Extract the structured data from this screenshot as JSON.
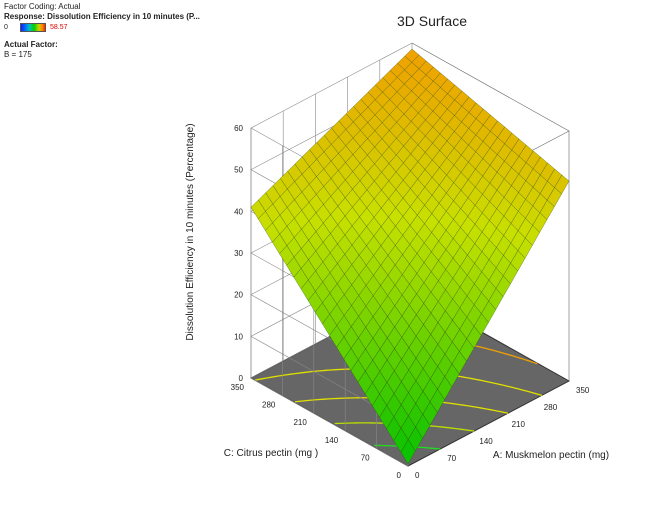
{
  "info": {
    "factor_coding": "Factor Coding: Actual",
    "response": "Response: Dissolution Efficiency in 10 minutes  (P...",
    "legend_min": "0",
    "legend_max": "58.57",
    "actual_factor_title": "Actual Factor:",
    "actual_factor_value": "B = 175"
  },
  "chart_data": {
    "type": "surface",
    "title": "3D Surface",
    "xlabel": "A: Muskmelon pectin (mg)",
    "ylabel": "C: Citrus pectin (mg )",
    "zlabel": "Dissolution Efficiency in 10 minutes  (Percentage)",
    "x_ticks": [
      "0",
      "70",
      "140",
      "210",
      "280",
      "350"
    ],
    "y_ticks": [
      "0",
      "70",
      "140",
      "210",
      "280",
      "350"
    ],
    "z_ticks": [
      "0",
      "10",
      "20",
      "30",
      "40",
      "50",
      "60"
    ],
    "xlim": [
      0,
      350
    ],
    "ylim": [
      0,
      350
    ],
    "zlim": [
      0,
      60
    ],
    "corner_values": [
      {
        "A": 0,
        "C": 0,
        "z": 0.5
      },
      {
        "A": 350,
        "C": 0,
        "z": 48
      },
      {
        "A": 0,
        "C": 350,
        "z": 41
      },
      {
        "A": 350,
        "C": 350,
        "z": 58.57
      }
    ],
    "colors": {
      "low": "#00c000",
      "mid": "#c8e000",
      "high": "#f0a000",
      "floor": "#666666",
      "contour_green": "#22dd22",
      "contour_yellow": "#e0e000",
      "contour_orange": "#f0a000"
    }
  }
}
